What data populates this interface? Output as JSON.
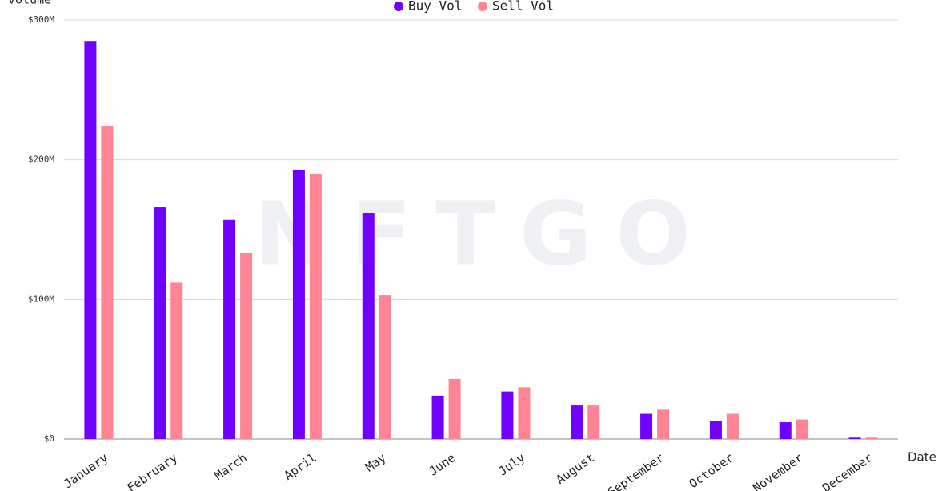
{
  "chart_data": {
    "type": "bar",
    "y_label": "Volume",
    "x_label": "Date",
    "watermark": "NFTGO",
    "categories": [
      "January",
      "February",
      "March",
      "April",
      "May",
      "June",
      "July",
      "August",
      "September",
      "October",
      "November",
      "December"
    ],
    "series": [
      {
        "name": "Buy Vol",
        "color": "#7000ff",
        "values": [
          285000000,
          166000000,
          157000000,
          193000000,
          162000000,
          31000000,
          34000000,
          24000000,
          18000000,
          13000000,
          12000000,
          1000000
        ]
      },
      {
        "name": "Sell Vol",
        "color": "#ff8595",
        "values": [
          224000000,
          112000000,
          133000000,
          190000000,
          103000000,
          43000000,
          37000000,
          24000000,
          21000000,
          18000000,
          14000000,
          1000000
        ]
      }
    ],
    "ylim": [
      0,
      300000000
    ],
    "yticks": [
      {
        "value": 0,
        "label": "$0"
      },
      {
        "value": 100000000,
        "label": "$100M"
      },
      {
        "value": 200000000,
        "label": "$200M"
      },
      {
        "value": 300000000,
        "label": "$300M"
      }
    ],
    "grid": true,
    "legend": "top"
  }
}
